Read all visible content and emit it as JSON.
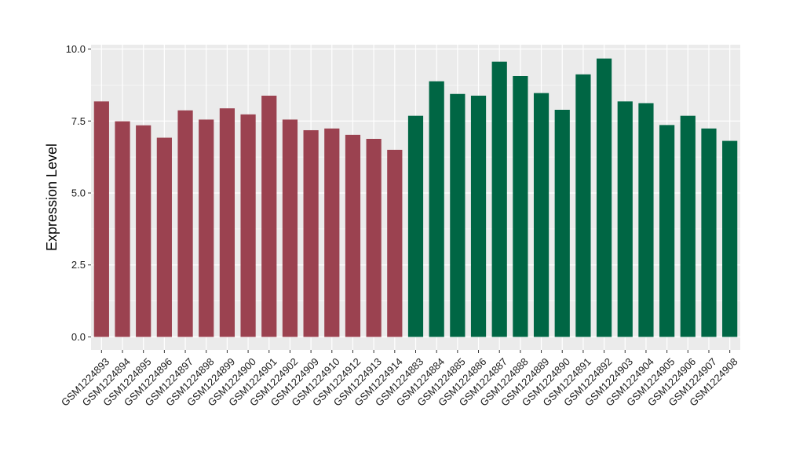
{
  "chart_data": {
    "type": "bar",
    "title": "",
    "xlabel": "",
    "ylabel": "Expression Level",
    "ylim": [
      -0.45,
      10.15
    ],
    "yticks": [
      0.0,
      2.5,
      5.0,
      7.5,
      10.0
    ],
    "ytick_labels": [
      "0.0",
      "2.5",
      "5.0",
      "7.5",
      "10.0"
    ],
    "grid": true,
    "legend": "none",
    "categories": [
      "GSM1224893",
      "GSM1224894",
      "GSM1224895",
      "GSM1224896",
      "GSM1224897",
      "GSM1224898",
      "GSM1224899",
      "GSM1224900",
      "GSM1224901",
      "GSM1224902",
      "GSM1224909",
      "GSM1224910",
      "GSM1224912",
      "GSM1224913",
      "GSM1224914",
      "GSM1224883",
      "GSM1224884",
      "GSM1224885",
      "GSM1224886",
      "GSM1224887",
      "GSM1224888",
      "GSM1224889",
      "GSM1224890",
      "GSM1224891",
      "GSM1224892",
      "GSM1224903",
      "GSM1224904",
      "GSM1224905",
      "GSM1224906",
      "GSM1224907",
      "GSM1224908"
    ],
    "values": [
      8.18,
      7.49,
      7.35,
      6.92,
      7.87,
      7.55,
      7.94,
      7.73,
      8.38,
      7.55,
      7.18,
      7.24,
      7.02,
      6.88,
      6.5,
      7.68,
      8.88,
      8.44,
      8.38,
      9.56,
      9.06,
      8.47,
      7.89,
      9.12,
      9.67,
      8.18,
      8.12,
      7.36,
      7.68,
      7.24,
      6.81
    ],
    "bar_colors": [
      "#9b4250",
      "#9b4250",
      "#9b4250",
      "#9b4250",
      "#9b4250",
      "#9b4250",
      "#9b4250",
      "#9b4250",
      "#9b4250",
      "#9b4250",
      "#9b4250",
      "#9b4250",
      "#9b4250",
      "#9b4250",
      "#9b4250",
      "#006644",
      "#006644",
      "#006644",
      "#006644",
      "#006644",
      "#006644",
      "#006644",
      "#006644",
      "#006644",
      "#006644",
      "#006644",
      "#006644",
      "#006644",
      "#006644",
      "#006644",
      "#006644"
    ],
    "panel_background": "#ebebeb",
    "gridline_color": "#ffffff"
  }
}
